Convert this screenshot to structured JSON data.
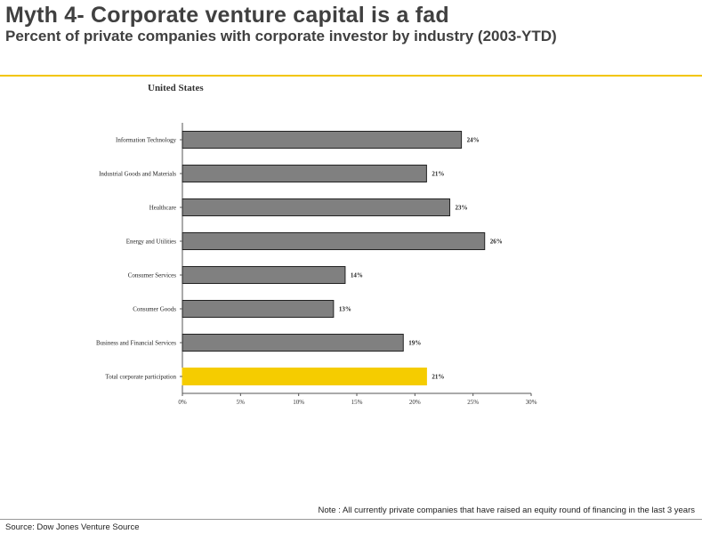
{
  "header": {
    "title": "Myth 4- Corporate venture capital is a fad",
    "subtitle": "Percent of private companies with corporate investor by industry (2003-YTD)"
  },
  "chart_data": {
    "type": "bar",
    "orientation": "horizontal",
    "title": "United States",
    "categories": [
      "Information Technology",
      "Industrial Goods and Materials",
      "Healthcare",
      "Energy and Utilities",
      "Consumer Services",
      "Consumer Goods",
      "Business and Financial Services",
      "Total corporate participation"
    ],
    "values": [
      24,
      21,
      23,
      26,
      14,
      13,
      19,
      21
    ],
    "value_labels": [
      "24%",
      "21%",
      "23%",
      "26%",
      "14%",
      "13%",
      "19%",
      "21%"
    ],
    "highlight_index": 7,
    "xlim": [
      0,
      30
    ],
    "xticks": [
      0,
      5,
      10,
      15,
      20,
      25,
      30
    ],
    "xtick_labels": [
      "0%",
      "5%",
      "10%",
      "15%",
      "20%",
      "25%",
      "30%"
    ],
    "xlabel": "",
    "ylabel": "",
    "grid": false,
    "colors": {
      "bar": "#808080",
      "highlight": "#f5cc00",
      "bar_stroke": "#222222"
    }
  },
  "footer": {
    "note": "Note : All currently private companies that have raised an equity round of financing in the last 3 years",
    "source": "Source:  Dow Jones Venture Source"
  },
  "theme": {
    "accent": "#f2c500",
    "title_color": "#404040"
  }
}
